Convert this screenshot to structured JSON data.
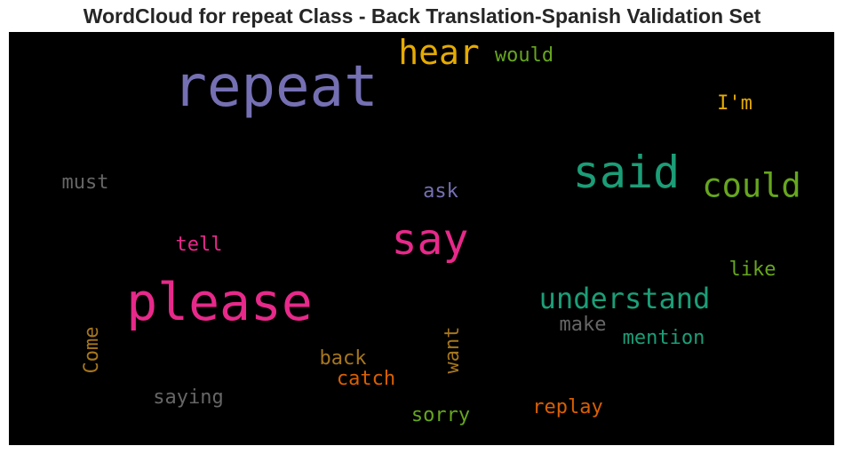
{
  "chart_data": {
    "type": "wordcloud",
    "title": "WordCloud for repeat Class - Back Translation-Spanish Validation Set",
    "background": "#000000",
    "words": [
      {
        "text": "repeat",
        "color": "#7570b3"
      },
      {
        "text": "please",
        "color": "#e7298a"
      },
      {
        "text": "said",
        "color": "#1b9e77"
      },
      {
        "text": "say",
        "color": "#e7298a"
      },
      {
        "text": "hear",
        "color": "#e6ab02"
      },
      {
        "text": "could",
        "color": "#66a61e"
      },
      {
        "text": "understand",
        "color": "#1b9e77"
      },
      {
        "text": "would",
        "color": "#66a61e"
      },
      {
        "text": "I'm",
        "color": "#e6ab02"
      },
      {
        "text": "must",
        "color": "#666666"
      },
      {
        "text": "ask",
        "color": "#7570b3"
      },
      {
        "text": "tell",
        "color": "#e7298a"
      },
      {
        "text": "like",
        "color": "#66a61e"
      },
      {
        "text": "make",
        "color": "#666666"
      },
      {
        "text": "mention",
        "color": "#1b9e77"
      },
      {
        "text": "Come",
        "color": "#a6761d"
      },
      {
        "text": "want",
        "color": "#a6761d"
      },
      {
        "text": "back",
        "color": "#a6761d"
      },
      {
        "text": "catch",
        "color": "#d95f02"
      },
      {
        "text": "saying",
        "color": "#666666"
      },
      {
        "text": "sorry",
        "color": "#66a61e"
      },
      {
        "text": "replay",
        "color": "#d95f02"
      }
    ]
  }
}
